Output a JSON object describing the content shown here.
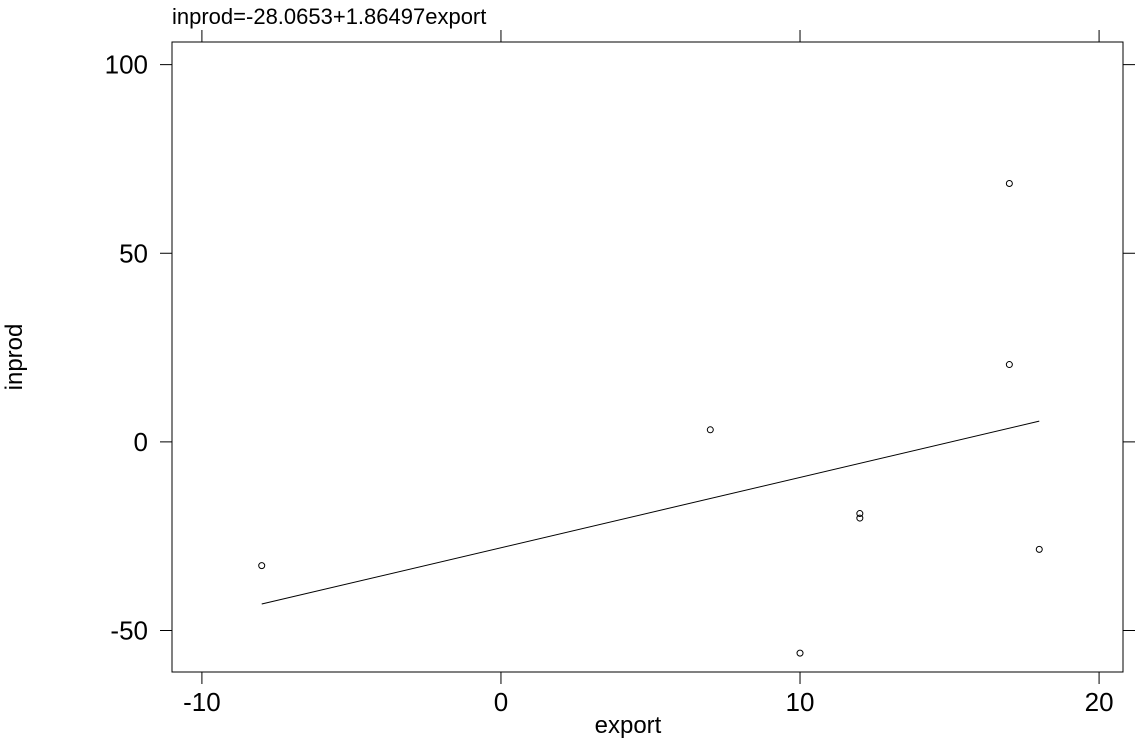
{
  "chart_data": {
    "type": "scatter",
    "title": "inprod=-28.0653+1.86497export",
    "xlabel": "export",
    "ylabel": "inprod",
    "xlim": [
      -11,
      20.8
    ],
    "ylim": [
      -61,
      106
    ],
    "x_ticks": [
      -10,
      0,
      10,
      20
    ],
    "y_ticks": [
      -50,
      0,
      50,
      100
    ],
    "x_tick_labels": [
      "-10",
      "0",
      "10",
      "20"
    ],
    "y_tick_labels": [
      "-50",
      "0",
      "50",
      "100"
    ],
    "grid": false,
    "points": [
      {
        "x": -8,
        "y": -32.8
      },
      {
        "x": 7,
        "y": 3.2
      },
      {
        "x": 10,
        "y": -56
      },
      {
        "x": 12,
        "y": -19
      },
      {
        "x": 12,
        "y": -20.2
      },
      {
        "x": 17,
        "y": 68.5
      },
      {
        "x": 17,
        "y": 20.5
      },
      {
        "x": 18,
        "y": -28.5
      }
    ],
    "fit_line": {
      "intercept": -28.0653,
      "slope": 1.86497,
      "x_range": [
        -8,
        18
      ]
    }
  }
}
